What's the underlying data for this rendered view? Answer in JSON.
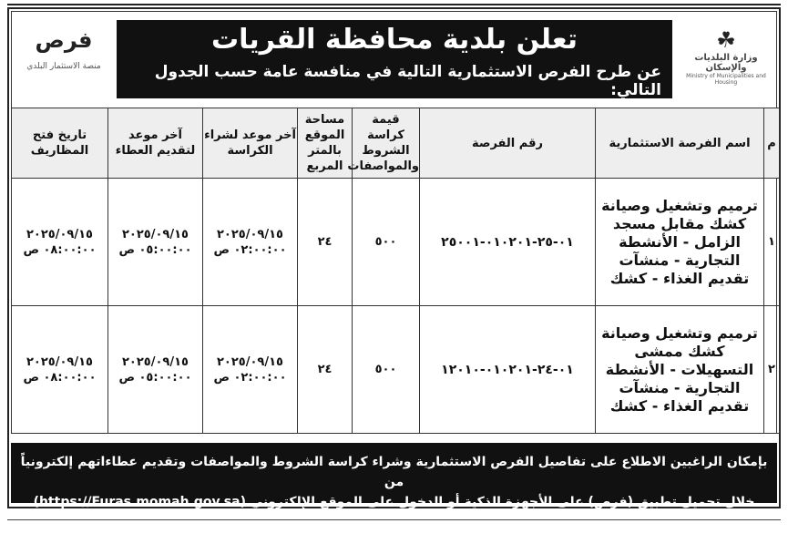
{
  "header": {
    "title": "تعلن بلدية محافظة القريات",
    "subtitle": "عن طرح الفرص الاستثمارية التالية في منافسة عامة حسب الجدول التالي:",
    "ministry_logo": {
      "ar": "وزارة البلديات والإسكان",
      "en": "Ministry of Municipalities and Housing"
    },
    "furas_logo": {
      "ar": "فرص",
      "sub": "منصة الاستثمار البلدي"
    }
  },
  "table": {
    "columns": [
      "م",
      "اسم الفرصة الاستثمارية",
      "رقم الفرصة",
      "قيمة كراسة الشروط والمواصفات",
      "مساحة الموقع بالمتر المربع",
      "آخر موعد لشراء الكراسة",
      "آخر موعد لتقديم العطاء",
      "تاريخ فتح المظاريف"
    ],
    "rows": [
      {
        "no": "١",
        "name": "ترميم وتشغيل وصيانة كشك مقابل مسجد الزامل - الأنشطة التجارية - منشآت تقديم الغذاء - كشك",
        "id": "٠١-٢٥-٠١٠٢٠١-٢٥٠٠١",
        "value": "٥٠٠",
        "area": "٢٤",
        "buy": "٢٠٢٥/٠٩/١٥ ٠٢:٠٠:٠٠ ص",
        "submit": "٢٠٢٥/٠٩/١٥ ٠٥:٠٠:٠٠ ص",
        "open": "٢٠٢٥/٠٩/١٥ ٠٨:٠٠:٠٠ ص"
      },
      {
        "no": "٢",
        "name": "ترميم وتشغيل وصيانة كشك ممشى التسهيلات - الأنشطة التجارية - منشآت تقديم الغذاء - كشك",
        "id": "٠١-٢٤-٠١٠٢٠١-١٢٠١٠",
        "value": "٥٠٠",
        "area": "٢٤",
        "buy": "٢٠٢٥/٠٩/١٥ ٠٢:٠٠:٠٠ ص",
        "submit": "٢٠٢٥/٠٩/١٥ ٠٥:٠٠:٠٠ ص",
        "open": "٢٠٢٥/٠٩/١٥ ٠٨:٠٠:٠٠ ص"
      }
    ]
  },
  "footer": {
    "line1": "بإمكان الراغبين الاطلاع على تفاصيل الفرص الاستثمارية وشراء كراسة الشروط والمواصفات وتقديم عطاءاتهم إلكترونياً من",
    "line2": "خلال تحميل تطبيق (فرص) على الأجهزة الذكية أو الدخول على الموقع الإلكتروني (https://Furas.momah.gov.sa)"
  }
}
